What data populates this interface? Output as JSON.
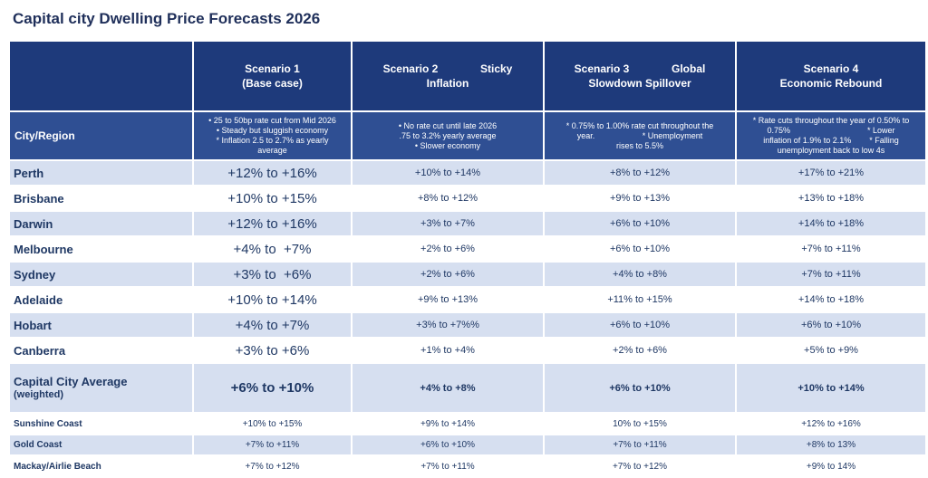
{
  "title": "Capital city Dwelling Price Forecasts 2026",
  "table": {
    "corner": "City/Region",
    "scenarios": [
      {
        "heading": [
          "Scenario 1",
          "(Base case)"
        ],
        "notes": [
          "• 25 to 50bp rate cut from Mid 2026",
          "• Steady but sluggish economy",
          "* Inflation 2.5 to 2.7% as yearly",
          "average"
        ]
      },
      {
        "heading": [
          "Scenario 2              Sticky",
          "Inflation"
        ],
        "notes": [
          "• No rate cut until late 2026",
          ".75 to 3.2% yearly average",
          "• Slower economy"
        ]
      },
      {
        "heading": [
          "Scenario 3              Global",
          "Slowdown Spillover"
        ],
        "notes": [
          "* 0.75% to 1.00% rate cut throughout the",
          "year.                     * Unemployment",
          "rises to 5.5%"
        ]
      },
      {
        "heading": [
          "Scenario 4",
          "Economic Rebound"
        ],
        "notes": [
          "* Rate cuts throughout the year of 0.50% to",
          "0.75%                                  * Lower",
          "inflation of 1.9% to 2.1%        * Falling",
          "unemployment back to low 4s"
        ]
      }
    ],
    "rows": [
      {
        "city": "Perth",
        "values": [
          "+12% to +16%",
          "+10% to +14%",
          "+8% to +12%",
          "+17% to +21%"
        ]
      },
      {
        "city": "Brisbane",
        "values": [
          "+10% to +15%",
          "+8% to +12%",
          "+9% to +13%",
          "+13% to +18%"
        ]
      },
      {
        "city": "Darwin",
        "values": [
          "+12% to +16%",
          "+3% to +7%",
          "+6% to +10%",
          "+14% to +18%"
        ]
      },
      {
        "city": "Melbourne",
        "values": [
          "+4% to  +7%",
          "+2% to +6%",
          "+6% to +10%",
          "+7% to +11%"
        ]
      },
      {
        "city": "Sydney",
        "values": [
          "+3% to  +6%",
          "+2% to +6%",
          "+4% to +8%",
          "+7% to +11%"
        ]
      },
      {
        "city": "Adelaide",
        "values": [
          "+10% to +14%",
          "+9% to +13%",
          "+11% to +15%",
          "+14% to +18%"
        ]
      },
      {
        "city": "Hobart",
        "values": [
          "+4% to +7%",
          "+3% to +7%%",
          "+6% to +10%",
          "+6% to +10%"
        ]
      },
      {
        "city": "Canberra",
        "values": [
          "+3% to +6%",
          "+1% to +4%",
          "+2% to +6%",
          "+5% to +9%"
        ]
      },
      {
        "city": "Capital City Average",
        "note": "(weighted)",
        "values": [
          "+6% to +10%",
          "+4% to +8%",
          "+6% to +10%",
          "+10% to +14%"
        ]
      },
      {
        "city": "Sunshine Coast",
        "values": [
          "+10% to +15%",
          "+9% to +14%",
          "10% to +15%",
          "+12% to +16%"
        ]
      },
      {
        "city": "Gold Coast",
        "values": [
          "+7% to +11%",
          "+6% to +10%",
          "+7% to +11%",
          "+8% to 13%"
        ]
      },
      {
        "city": "Mackay/Airlie Beach",
        "values": [
          "+7% to +12%",
          "+7% to +11%",
          "+7% to +12%",
          "+9% to 14%"
        ]
      }
    ]
  }
}
